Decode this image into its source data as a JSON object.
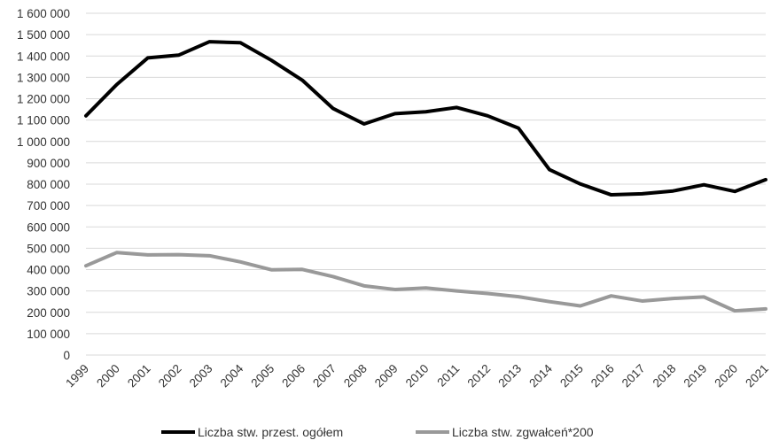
{
  "chart_data": {
    "type": "line",
    "title": "",
    "xlabel": "",
    "ylabel": "",
    "ylim": [
      0,
      1600000
    ],
    "y_ticks": [
      0,
      100000,
      200000,
      300000,
      400000,
      500000,
      600000,
      700000,
      800000,
      900000,
      1000000,
      1100000,
      1200000,
      1300000,
      1400000,
      1500000,
      1600000
    ],
    "y_tick_labels": [
      "0",
      "100 000",
      "200 000",
      "300 000",
      "400 000",
      "500 000",
      "600 000",
      "700 000",
      "800 000",
      "900 000",
      "1 000 000",
      "1 100 000",
      "1 200 000",
      "1 300 000",
      "1 400 000",
      "1 500 000",
      "1 600 000"
    ],
    "grid": true,
    "legend_position": "bottom",
    "categories": [
      "1999",
      "2000",
      "2001",
      "2002",
      "2003",
      "2004",
      "2005",
      "2006",
      "2007",
      "2008",
      "2009",
      "2010",
      "2011",
      "2012",
      "2013",
      "2014",
      "2015",
      "2016",
      "2017",
      "2018",
      "2019",
      "2020",
      "2021"
    ],
    "series": [
      {
        "name": "Liczba stw. przest. ogółem",
        "color": "#000000",
        "values": [
          1120000,
          1267000,
          1391000,
          1404000,
          1467000,
          1462000,
          1380000,
          1287000,
          1154000,
          1082000,
          1130000,
          1139000,
          1159000,
          1120000,
          1062000,
          868000,
          801000,
          750000,
          755000,
          768000,
          797000,
          766000,
          821000
        ]
      },
      {
        "name": "Liczba stw. zgwałceń*200",
        "color": "#999999",
        "values": [
          418000,
          480000,
          469000,
          470000,
          465000,
          436000,
          399000,
          401000,
          367000,
          324000,
          307000,
          314000,
          300000,
          288000,
          273000,
          250000,
          230000,
          277000,
          253000,
          265000,
          272000,
          207000,
          216000
        ]
      }
    ]
  }
}
